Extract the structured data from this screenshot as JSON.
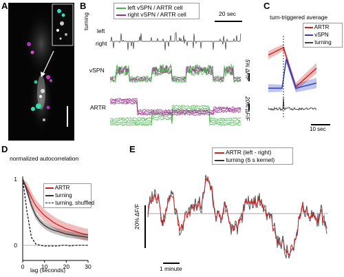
{
  "panel_letters": {
    "a": "A",
    "b": "B",
    "c": "C",
    "d": "D",
    "e": "E"
  },
  "panel_b": {
    "legend": [
      "left vSPN / ARTR cell",
      "right vSPN / ARTR cell"
    ],
    "scale_time": "20 sec",
    "row_labels": {
      "turning": "turning",
      "left": "left",
      "right": "right",
      "vspn": "vSPN",
      "artr": "ARTR"
    },
    "scale_vspn": "5% ΔF/F",
    "scale_artr": "20% ΔF/F",
    "colors": {
      "left": "#43b649",
      "right": "#9b2d8f",
      "turning": "#333333"
    }
  },
  "panel_c": {
    "title": "turn-triggered average",
    "legend": [
      "ARTR",
      "vSPN",
      "turning"
    ],
    "colors": {
      "artr": "#cc2222",
      "vspn": "#2a3fbf",
      "turning": "#444444"
    },
    "scale_time": "10 sec"
  },
  "panel_d": {
    "title": "normalized autocorrelation",
    "legend": [
      "ARTR",
      "turning",
      "turning, shuffled"
    ],
    "xlabel": "lag (seconds)",
    "x_ticks": [
      "0",
      "10",
      "20",
      "30"
    ],
    "y_ticks": [
      "0",
      "1"
    ]
  },
  "panel_e": {
    "legend": [
      "ARTR (left - right)",
      "turning (6 s kernel)"
    ],
    "ylabel": "20% ΔF/F",
    "scale_time": "1 minute"
  },
  "chart_data": [
    {
      "type": "line",
      "title": "normalized autocorrelation",
      "xlabel": "lag (seconds)",
      "ylabel": "",
      "xlim": [
        0,
        30
      ],
      "ylim": [
        0,
        1
      ],
      "x": [
        0,
        2,
        4,
        6,
        8,
        10,
        12,
        14,
        16,
        18,
        20,
        22,
        24,
        26,
        28,
        30
      ],
      "series": [
        {
          "name": "ARTR",
          "color": "#cc2222",
          "values": [
            1.0,
            0.86,
            0.72,
            0.6,
            0.52,
            0.45,
            0.4,
            0.35,
            0.31,
            0.28,
            0.25,
            0.23,
            0.21,
            0.19,
            0.17,
            0.16
          ]
        },
        {
          "name": "turning",
          "color": "#333333",
          "values": [
            1.0,
            0.82,
            0.6,
            0.45,
            0.36,
            0.3,
            0.26,
            0.23,
            0.21,
            0.19,
            0.17,
            0.16,
            0.15,
            0.14,
            0.13,
            0.12
          ]
        },
        {
          "name": "turning, shuffled",
          "color": "#111111",
          "dashed": true,
          "values": [
            1.0,
            0.5,
            0.12,
            0.02,
            0.0,
            -0.01,
            -0.01,
            -0.01,
            -0.01,
            0.0,
            0.0,
            -0.01,
            0.0,
            0.0,
            0.0,
            0.0
          ]
        }
      ]
    }
  ]
}
